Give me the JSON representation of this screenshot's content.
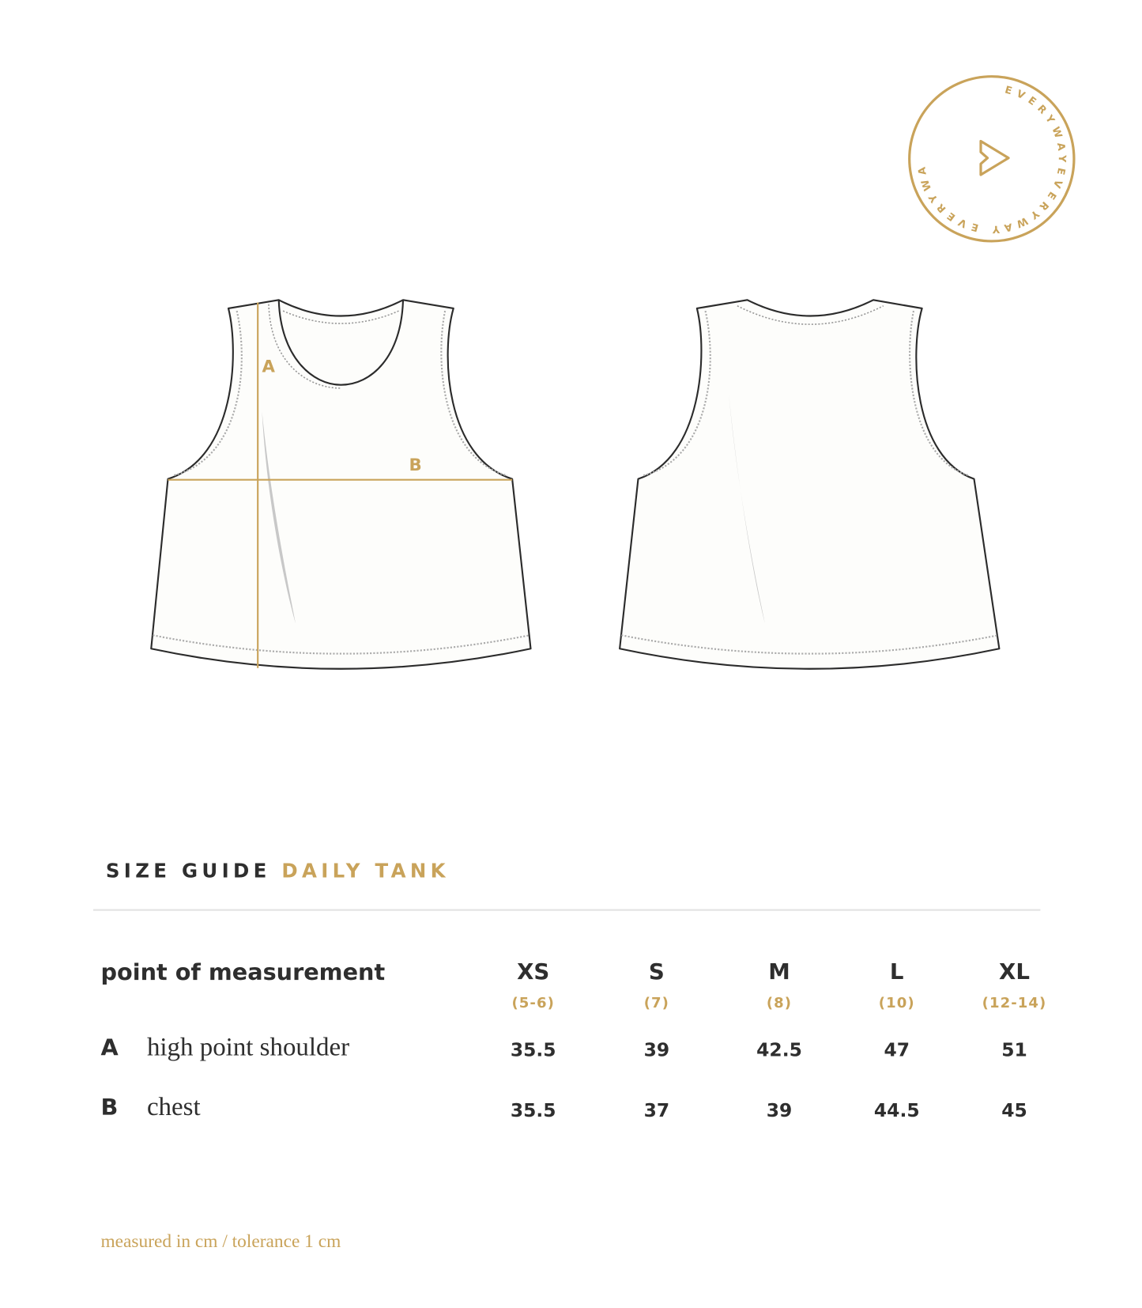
{
  "brand": {
    "logo_text": "EVERYWAY",
    "accent_color": "#c9a35a",
    "text_color": "#2e2e2e"
  },
  "diagram": {
    "front_labels": [
      "A",
      "B"
    ]
  },
  "size_guide": {
    "title": "SIZE GUIDE",
    "product": "DAILY TANK",
    "header_label": "point of measurement",
    "sizes": [
      {
        "size": "XS",
        "age": "(5-6)"
      },
      {
        "size": "S",
        "age": "(7)"
      },
      {
        "size": "M",
        "age": "(8)"
      },
      {
        "size": "L",
        "age": "(10)"
      },
      {
        "size": "XL",
        "age": "(12-14)"
      }
    ],
    "rows": [
      {
        "code": "A",
        "name": "high point shoulder",
        "values": [
          "35.5",
          "39",
          "42.5",
          "47",
          "51"
        ]
      },
      {
        "code": "B",
        "name": "chest",
        "values": [
          "35.5",
          "37",
          "39",
          "44.5",
          "45"
        ]
      }
    ],
    "footnote": "measured in cm / tolerance 1 cm"
  }
}
